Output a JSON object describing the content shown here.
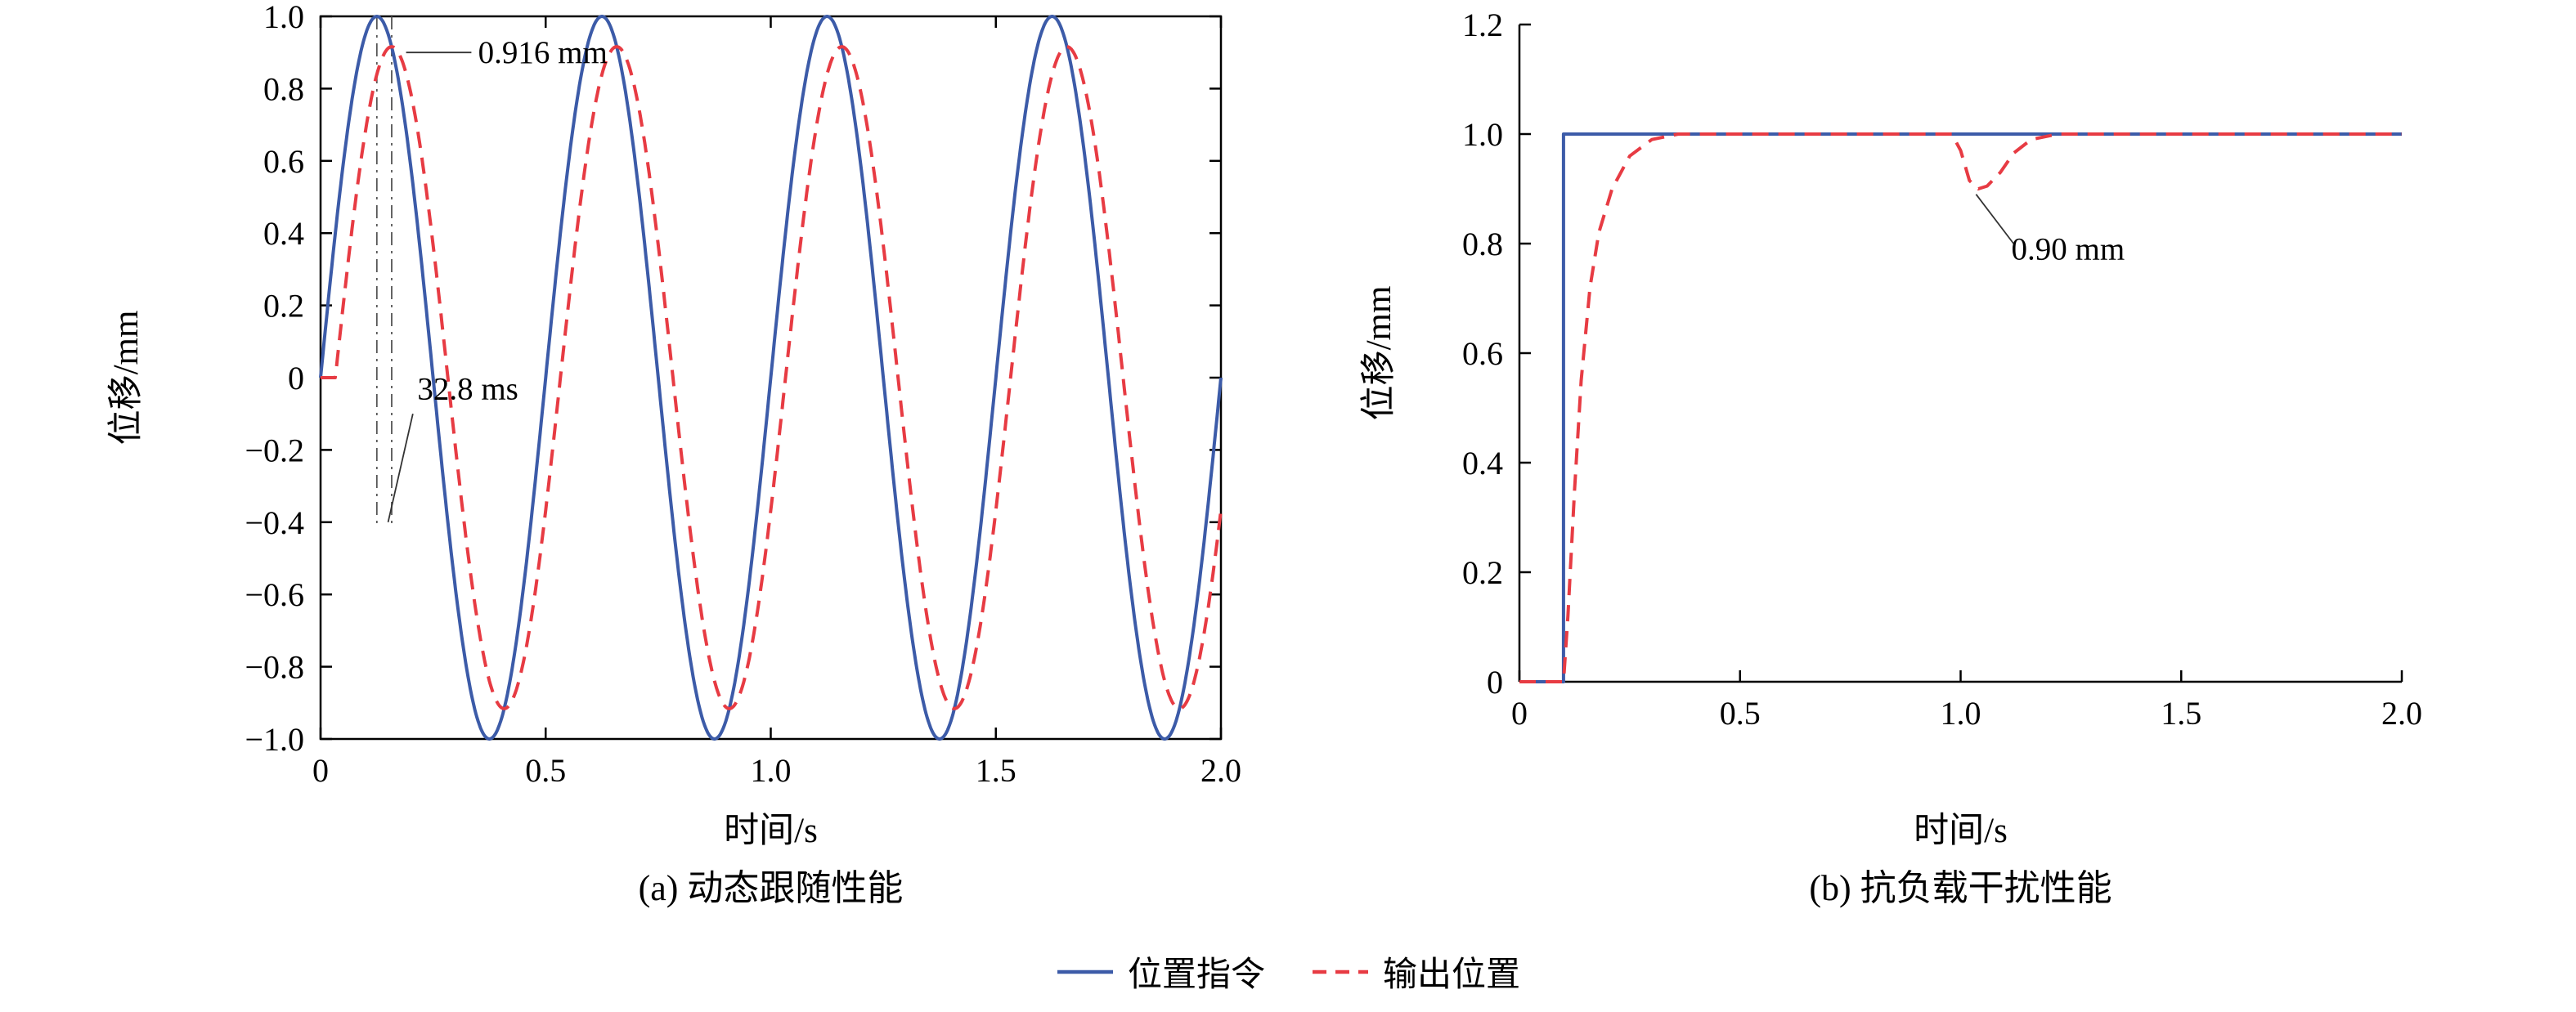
{
  "figure": {
    "background": "#ffffff",
    "axis_color": "#000000",
    "guide_color": "#555555",
    "leader_color": "#333333",
    "command_color": "#3c5ba8",
    "output_color": "#e73b43"
  },
  "legend": {
    "position": "bottom-center",
    "items": [
      {
        "key": "command",
        "label": "位置指令",
        "color": "#3c5ba8",
        "line": "solid"
      },
      {
        "key": "output",
        "label": "输出位置",
        "color": "#e73b43",
        "line": "dashed"
      }
    ]
  },
  "chart_data": [
    {
      "type": "line",
      "title": "(a) 动态跟随性能",
      "xlabel": "时间/s",
      "ylabel": "位移/mm",
      "xlim": [
        0,
        2.0
      ],
      "ylim": [
        -1.0,
        1.0
      ],
      "frame": "box",
      "grid": false,
      "xticks": [
        {
          "v": 0,
          "label": "0"
        },
        {
          "v": 0.5,
          "label": "0.5"
        },
        {
          "v": 1.0,
          "label": "1.0"
        },
        {
          "v": 1.5,
          "label": "1.5"
        },
        {
          "v": 2.0,
          "label": "2.0"
        }
      ],
      "yticks": [
        {
          "v": 1.0,
          "label": "1.0"
        },
        {
          "v": 0.8,
          "label": "0.8"
        },
        {
          "v": 0.6,
          "label": "0.6"
        },
        {
          "v": 0.4,
          "label": "0.4"
        },
        {
          "v": 0.2,
          "label": "0.2"
        },
        {
          "v": 0,
          "label": "0"
        },
        {
          "v": -0.2,
          "label": "−0.2"
        },
        {
          "v": -0.4,
          "label": "−0.4"
        },
        {
          "v": -0.6,
          "label": "−0.6"
        },
        {
          "v": -0.8,
          "label": "−0.8"
        },
        {
          "v": -1.0,
          "label": "−1.0"
        }
      ],
      "series": [
        {
          "key": "command",
          "name": "位置指令",
          "fn": "sine",
          "amplitude_mm": 1.0,
          "frequency_hz": 2.0,
          "delay_s": 0,
          "color": "#3c5ba8",
          "dash": ""
        },
        {
          "key": "output",
          "name": "输出位置",
          "fn": "sine",
          "amplitude_mm": 0.916,
          "frequency_hz": 2.0,
          "delay_s": 0.0328,
          "color": "#e73b43",
          "dash": "20 12"
        }
      ],
      "guides": [
        {
          "x": 0.125,
          "y1": 1.0,
          "y2": -0.41
        },
        {
          "x": 0.158,
          "y1": 1.0,
          "y2": -0.41
        }
      ],
      "annotations": [
        {
          "text": "0.916 mm",
          "tx": 0.35,
          "ty": 0.9,
          "anchor": "start",
          "leader": [
            0.19,
            0.9,
            0.335,
            0.9
          ]
        },
        {
          "text": "32.8 ms",
          "tx": 0.215,
          "ty": -0.03,
          "anchor": "start",
          "leader": [
            0.205,
            -0.1,
            0.15,
            -0.4
          ]
        }
      ]
    },
    {
      "type": "line",
      "title": "(b) 抗负载干扰性能",
      "xlabel": "时间/s",
      "ylabel": "位移/mm",
      "xlim": [
        0,
        2.0
      ],
      "ylim": [
        0,
        1.2
      ],
      "frame": "open",
      "grid": false,
      "xticks": [
        {
          "v": 0,
          "label": "0"
        },
        {
          "v": 0.5,
          "label": "0.5"
        },
        {
          "v": 1.0,
          "label": "1.0"
        },
        {
          "v": 1.5,
          "label": "1.5"
        },
        {
          "v": 2.0,
          "label": "2.0"
        }
      ],
      "yticks": [
        {
          "v": 0,
          "label": "0"
        },
        {
          "v": 0.2,
          "label": "0.2"
        },
        {
          "v": 0.4,
          "label": "0.4"
        },
        {
          "v": 0.6,
          "label": "0.6"
        },
        {
          "v": 0.8,
          "label": "0.8"
        },
        {
          "v": 1.0,
          "label": "1.0"
        },
        {
          "v": 1.2,
          "label": "1.2"
        }
      ],
      "series": [
        {
          "key": "command",
          "name": "位置指令",
          "fn": "points",
          "color": "#3c5ba8",
          "dash": "",
          "points": [
            [
              0,
              0
            ],
            [
              0.1,
              0
            ],
            [
              0.1,
              1.0
            ],
            [
              2.0,
              1.0
            ]
          ]
        },
        {
          "key": "output",
          "name": "输出位置",
          "fn": "points",
          "color": "#e73b43",
          "dash": "20 12",
          "points": [
            [
              0,
              0
            ],
            [
              0.1,
              0
            ],
            [
              0.11,
              0.12
            ],
            [
              0.125,
              0.35
            ],
            [
              0.14,
              0.55
            ],
            [
              0.16,
              0.72
            ],
            [
              0.18,
              0.82
            ],
            [
              0.21,
              0.9
            ],
            [
              0.25,
              0.96
            ],
            [
              0.3,
              0.99
            ],
            [
              0.36,
              1.0
            ],
            [
              0.98,
              1.0
            ],
            [
              1.0,
              0.97
            ],
            [
              1.02,
              0.915
            ],
            [
              1.04,
              0.9
            ],
            [
              1.06,
              0.905
            ],
            [
              1.09,
              0.93
            ],
            [
              1.12,
              0.965
            ],
            [
              1.16,
              0.99
            ],
            [
              1.22,
              1.0
            ],
            [
              2.0,
              1.0
            ]
          ]
        }
      ],
      "annotations": [
        {
          "text": "0.90 mm",
          "tx": 1.115,
          "ty": 0.79,
          "anchor": "start",
          "leader": [
            1.035,
            0.89,
            1.12,
            0.8
          ]
        }
      ]
    }
  ]
}
